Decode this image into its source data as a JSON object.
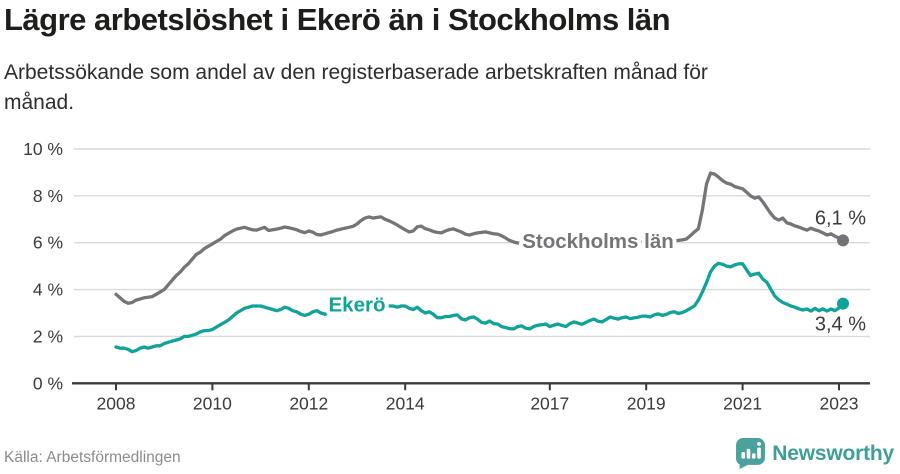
{
  "header": {
    "title": "Lägre arbetslöshet i Ekerö än i Stockholms län",
    "subtitle_lines": [
      "Arbetssökande som andel av den registerbaserade arbetskraften månad för",
      "månad."
    ]
  },
  "footer": {
    "source": "Källa: Arbetsförmedlingen",
    "brand": "Newsworthy"
  },
  "colors": {
    "ekero_teal": "#0fa399",
    "stockholm_gray": "#757479",
    "grid": "#d8d9d9",
    "axis_text": "#3b3b3b",
    "logo_teal": "#4aa29b"
  },
  "chart_data": {
    "type": "line",
    "x_start_year": 2008,
    "points_per_year": 12,
    "ylim": [
      0,
      10
    ],
    "grid": true,
    "y_ticks": [
      {
        "v": 0,
        "label": "0 %"
      },
      {
        "v": 2,
        "label": "2 %"
      },
      {
        "v": 4,
        "label": "4 %"
      },
      {
        "v": 6,
        "label": "6 %"
      },
      {
        "v": 8,
        "label": "8 %"
      },
      {
        "v": 10,
        "label": "10 %"
      }
    ],
    "x_ticks": [
      {
        "v": 2008,
        "label": "2008"
      },
      {
        "v": 2010,
        "label": "2010"
      },
      {
        "v": 2012,
        "label": "2012"
      },
      {
        "v": 2014,
        "label": "2014"
      },
      {
        "v": 2017,
        "label": "2017"
      },
      {
        "v": 2019,
        "label": "2019"
      },
      {
        "v": 2021,
        "label": "2021"
      },
      {
        "v": 2023,
        "label": "2023"
      }
    ],
    "series": [
      {
        "id": "stockholm",
        "name": "Stockholms län",
        "color": "#757479",
        "end_label": "6,1 %",
        "end_label_side": "above",
        "inline_label": {
          "text": "Stockholms län",
          "x_year": 2018.0,
          "y_value": 6.07
        },
        "values": [
          3.8,
          3.65,
          3.5,
          3.42,
          3.45,
          3.55,
          3.6,
          3.65,
          3.67,
          3.7,
          3.8,
          3.9,
          4.0,
          4.2,
          4.4,
          4.6,
          4.75,
          4.95,
          5.1,
          5.3,
          5.5,
          5.6,
          5.75,
          5.85,
          5.95,
          6.05,
          6.15,
          6.3,
          6.4,
          6.5,
          6.58,
          6.62,
          6.66,
          6.6,
          6.55,
          6.54,
          6.6,
          6.66,
          6.52,
          6.55,
          6.58,
          6.62,
          6.67,
          6.64,
          6.6,
          6.55,
          6.48,
          6.43,
          6.5,
          6.45,
          6.35,
          6.33,
          6.38,
          6.43,
          6.48,
          6.54,
          6.58,
          6.62,
          6.66,
          6.7,
          6.8,
          6.95,
          7.05,
          7.1,
          7.05,
          7.08,
          7.1,
          7.0,
          6.93,
          6.85,
          6.75,
          6.65,
          6.55,
          6.46,
          6.5,
          6.68,
          6.71,
          6.6,
          6.55,
          6.48,
          6.44,
          6.42,
          6.5,
          6.56,
          6.59,
          6.52,
          6.46,
          6.36,
          6.33,
          6.38,
          6.42,
          6.44,
          6.46,
          6.42,
          6.38,
          6.37,
          6.3,
          6.2,
          6.1,
          6.03,
          5.99,
          5.97,
          5.95,
          5.94,
          5.95,
          5.96,
          5.97,
          5.98,
          5.92,
          5.88,
          5.84,
          5.8,
          5.76,
          5.78,
          5.82,
          5.85,
          5.88,
          5.9,
          5.93,
          5.95,
          5.92,
          5.88,
          5.85,
          5.88,
          5.9,
          5.93,
          5.95,
          5.97,
          6.0,
          6.0,
          6.02,
          6.03,
          6.0,
          6.0,
          6.02,
          6.0,
          6.03,
          6.02,
          6.05,
          6.08,
          6.1,
          6.12,
          6.16,
          6.3,
          6.46,
          6.6,
          7.4,
          8.5,
          8.97,
          8.93,
          8.8,
          8.65,
          8.55,
          8.5,
          8.4,
          8.35,
          8.3,
          8.15,
          8.0,
          7.9,
          7.95,
          7.75,
          7.5,
          7.25,
          7.05,
          6.97,
          7.05,
          6.85,
          6.8,
          6.72,
          6.67,
          6.6,
          6.54,
          6.62,
          6.55,
          6.5,
          6.42,
          6.33,
          6.38,
          6.28,
          6.2,
          6.1
        ]
      },
      {
        "id": "ekero",
        "name": "Ekerö",
        "color": "#0fa399",
        "end_label": "3,4 %",
        "end_label_side": "below",
        "inline_label": {
          "text": "Ekerö",
          "x_year": 2013.0,
          "y_value": 3.36
        },
        "values": [
          1.55,
          1.5,
          1.5,
          1.45,
          1.35,
          1.4,
          1.5,
          1.55,
          1.5,
          1.55,
          1.6,
          1.6,
          1.7,
          1.75,
          1.8,
          1.85,
          1.9,
          2.0,
          2.0,
          2.05,
          2.1,
          2.2,
          2.25,
          2.25,
          2.3,
          2.4,
          2.5,
          2.6,
          2.7,
          2.85,
          3.0,
          3.1,
          3.2,
          3.25,
          3.3,
          3.3,
          3.3,
          3.25,
          3.2,
          3.15,
          3.1,
          3.15,
          3.25,
          3.2,
          3.1,
          3.05,
          2.95,
          2.9,
          2.95,
          3.05,
          3.1,
          3.0,
          2.95,
          3.0,
          3.1,
          3.15,
          3.1,
          3.05,
          3.1,
          3.15,
          3.2,
          3.25,
          3.3,
          3.25,
          3.2,
          3.25,
          3.3,
          3.35,
          3.3,
          3.3,
          3.25,
          3.3,
          3.3,
          3.2,
          3.15,
          3.25,
          3.1,
          3.0,
          3.05,
          2.95,
          2.8,
          2.8,
          2.85,
          2.85,
          2.9,
          2.92,
          2.75,
          2.7,
          2.8,
          2.83,
          2.74,
          2.6,
          2.57,
          2.66,
          2.55,
          2.53,
          2.42,
          2.38,
          2.33,
          2.32,
          2.42,
          2.45,
          2.35,
          2.32,
          2.42,
          2.48,
          2.5,
          2.53,
          2.42,
          2.48,
          2.53,
          2.47,
          2.42,
          2.55,
          2.62,
          2.57,
          2.52,
          2.6,
          2.68,
          2.74,
          2.65,
          2.62,
          2.72,
          2.83,
          2.78,
          2.74,
          2.8,
          2.83,
          2.76,
          2.79,
          2.82,
          2.87,
          2.87,
          2.83,
          2.92,
          2.96,
          2.9,
          2.94,
          3.02,
          3.05,
          2.98,
          3.02,
          3.1,
          3.2,
          3.3,
          3.55,
          3.9,
          4.3,
          4.75,
          5.0,
          5.12,
          5.08,
          5.0,
          4.97,
          5.05,
          5.1,
          5.1,
          4.84,
          4.6,
          4.66,
          4.7,
          4.45,
          4.32,
          4.02,
          3.73,
          3.56,
          3.45,
          3.38,
          3.3,
          3.25,
          3.18,
          3.13,
          3.17,
          3.08,
          3.2,
          3.1,
          3.18,
          3.08,
          3.17,
          3.1,
          3.22,
          3.4
        ]
      }
    ]
  }
}
